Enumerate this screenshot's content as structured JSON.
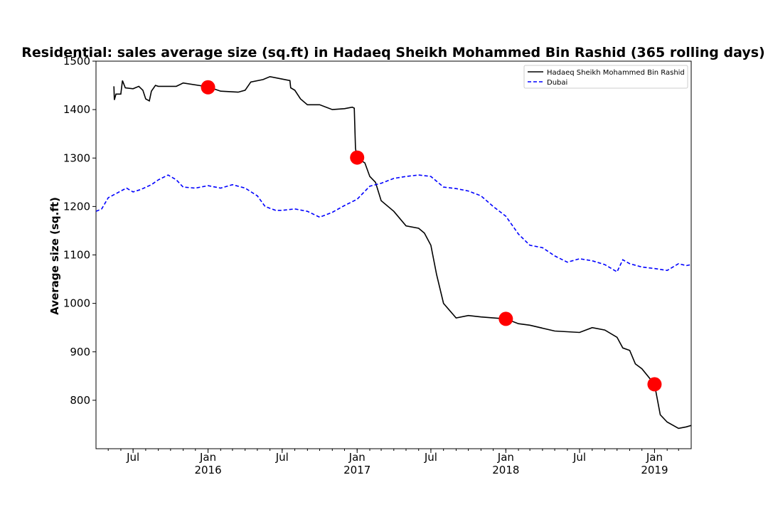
{
  "chart_data": {
    "type": "line",
    "title": "Residential: sales average size (sq.ft) in Hadaeq Sheikh Mohammed Bin Rashid (365 rolling days)",
    "xlabel": "",
    "ylabel": "Average size (sq.ft)",
    "x_range": [
      "2015-04-01",
      "2019-04-01"
    ],
    "ylim": [
      700,
      1500
    ],
    "y_ticks": [
      800,
      900,
      1000,
      1100,
      1200,
      1300,
      1400,
      1500
    ],
    "x_ticks": [
      {
        "date": "2015-07-01",
        "label": "Jul",
        "year": ""
      },
      {
        "date": "2016-01-01",
        "label": "Jan",
        "year": "2016"
      },
      {
        "date": "2016-07-01",
        "label": "Jul",
        "year": ""
      },
      {
        "date": "2017-01-01",
        "label": "Jan",
        "year": "2017"
      },
      {
        "date": "2017-07-01",
        "label": "Jul",
        "year": ""
      },
      {
        "date": "2018-01-01",
        "label": "Jan",
        "year": "2018"
      },
      {
        "date": "2018-07-01",
        "label": "Jul",
        "year": ""
      },
      {
        "date": "2019-01-01",
        "label": "Jan",
        "year": "2019"
      }
    ],
    "grid": false,
    "legend_position": "top-right",
    "series": [
      {
        "name": "Hadaeq Sheikh Mohammed Bin Rashid",
        "color": "#000000",
        "style": "solid",
        "points": [
          [
            "2015-05-15",
            1448
          ],
          [
            "2015-05-16",
            1420
          ],
          [
            "2015-05-20",
            1432
          ],
          [
            "2015-06-01",
            1432
          ],
          [
            "2015-06-05",
            1460
          ],
          [
            "2015-06-12",
            1445
          ],
          [
            "2015-07-01",
            1443
          ],
          [
            "2015-07-15",
            1448
          ],
          [
            "2015-07-25",
            1440
          ],
          [
            "2015-08-01",
            1422
          ],
          [
            "2015-08-10",
            1418
          ],
          [
            "2015-08-15",
            1438
          ],
          [
            "2015-08-25",
            1450
          ],
          [
            "2015-09-01",
            1448
          ],
          [
            "2015-10-15",
            1448
          ],
          [
            "2015-11-01",
            1455
          ],
          [
            "2016-01-01",
            1447
          ],
          [
            "2016-02-01",
            1438
          ],
          [
            "2016-03-15",
            1436
          ],
          [
            "2016-04-01",
            1440
          ],
          [
            "2016-04-15",
            1457
          ],
          [
            "2016-05-15",
            1462
          ],
          [
            "2016-06-01",
            1468
          ],
          [
            "2016-07-01",
            1463
          ],
          [
            "2016-07-20",
            1460
          ],
          [
            "2016-07-22",
            1445
          ],
          [
            "2016-08-01",
            1440
          ],
          [
            "2016-08-15",
            1422
          ],
          [
            "2016-09-01",
            1410
          ],
          [
            "2016-10-01",
            1410
          ],
          [
            "2016-11-01",
            1400
          ],
          [
            "2016-12-01",
            1402
          ],
          [
            "2016-12-20",
            1405
          ],
          [
            "2016-12-25",
            1403
          ],
          [
            "2016-12-28",
            1320
          ],
          [
            "2017-01-01",
            1300
          ],
          [
            "2017-01-20",
            1290
          ],
          [
            "2017-02-01",
            1262
          ],
          [
            "2017-02-15",
            1250
          ],
          [
            "2017-03-01",
            1212
          ],
          [
            "2017-04-01",
            1190
          ],
          [
            "2017-05-01",
            1160
          ],
          [
            "2017-06-01",
            1155
          ],
          [
            "2017-06-15",
            1145
          ],
          [
            "2017-07-01",
            1120
          ],
          [
            "2017-07-15",
            1060
          ],
          [
            "2017-08-01",
            1000
          ],
          [
            "2017-09-01",
            970
          ],
          [
            "2017-10-01",
            975
          ],
          [
            "2017-11-01",
            972
          ],
          [
            "2018-01-01",
            968
          ],
          [
            "2018-02-01",
            958
          ],
          [
            "2018-03-01",
            955
          ],
          [
            "2018-05-01",
            943
          ],
          [
            "2018-07-01",
            940
          ],
          [
            "2018-08-01",
            950
          ],
          [
            "2018-09-01",
            945
          ],
          [
            "2018-10-01",
            930
          ],
          [
            "2018-10-15",
            908
          ],
          [
            "2018-11-01",
            903
          ],
          [
            "2018-11-15",
            875
          ],
          [
            "2018-12-01",
            865
          ],
          [
            "2019-01-01",
            833
          ],
          [
            "2019-01-15",
            770
          ],
          [
            "2019-02-01",
            755
          ],
          [
            "2019-03-01",
            742
          ],
          [
            "2019-03-20",
            745
          ],
          [
            "2019-04-01",
            748
          ]
        ]
      },
      {
        "name": "Dubai",
        "color": "#0000ff",
        "style": "dashed",
        "points": [
          [
            "2015-04-01",
            1190
          ],
          [
            "2015-04-15",
            1195
          ],
          [
            "2015-05-01",
            1218
          ],
          [
            "2015-06-01",
            1232
          ],
          [
            "2015-06-15",
            1238
          ],
          [
            "2015-07-01",
            1230
          ],
          [
            "2015-07-20",
            1235
          ],
          [
            "2015-08-15",
            1245
          ],
          [
            "2015-09-01",
            1255
          ],
          [
            "2015-09-25",
            1265
          ],
          [
            "2015-10-15",
            1255
          ],
          [
            "2015-11-01",
            1240
          ],
          [
            "2015-12-01",
            1238
          ],
          [
            "2016-01-01",
            1243
          ],
          [
            "2016-02-01",
            1238
          ],
          [
            "2016-03-01",
            1245
          ],
          [
            "2016-04-01",
            1238
          ],
          [
            "2016-05-01",
            1222
          ],
          [
            "2016-05-20",
            1200
          ],
          [
            "2016-06-15",
            1192
          ],
          [
            "2016-07-01",
            1192
          ],
          [
            "2016-08-01",
            1195
          ],
          [
            "2016-09-01",
            1190
          ],
          [
            "2016-10-01",
            1178
          ],
          [
            "2016-11-01",
            1188
          ],
          [
            "2016-12-01",
            1202
          ],
          [
            "2017-01-01",
            1215
          ],
          [
            "2017-02-01",
            1242
          ],
          [
            "2017-03-01",
            1248
          ],
          [
            "2017-04-01",
            1258
          ],
          [
            "2017-05-01",
            1262
          ],
          [
            "2017-06-01",
            1265
          ],
          [
            "2017-07-01",
            1262
          ],
          [
            "2017-08-01",
            1240
          ],
          [
            "2017-09-01",
            1237
          ],
          [
            "2017-10-01",
            1232
          ],
          [
            "2017-11-01",
            1222
          ],
          [
            "2017-12-01",
            1200
          ],
          [
            "2018-01-01",
            1180
          ],
          [
            "2018-02-01",
            1143
          ],
          [
            "2018-03-01",
            1120
          ],
          [
            "2018-04-01",
            1115
          ],
          [
            "2018-05-01",
            1098
          ],
          [
            "2018-06-01",
            1085
          ],
          [
            "2018-07-01",
            1092
          ],
          [
            "2018-08-01",
            1088
          ],
          [
            "2018-09-01",
            1080
          ],
          [
            "2018-10-01",
            1065
          ],
          [
            "2018-10-15",
            1090
          ],
          [
            "2018-11-01",
            1082
          ],
          [
            "2018-12-01",
            1075
          ],
          [
            "2019-01-01",
            1072
          ],
          [
            "2019-02-01",
            1068
          ],
          [
            "2019-03-01",
            1082
          ],
          [
            "2019-03-20",
            1078
          ],
          [
            "2019-04-01",
            1080
          ]
        ]
      }
    ],
    "markers": {
      "color": "#ff0000",
      "points": [
        [
          "2016-01-01",
          1446
        ],
        [
          "2017-01-01",
          1301
        ],
        [
          "2018-01-01",
          968
        ],
        [
          "2019-01-01",
          833
        ]
      ]
    }
  }
}
